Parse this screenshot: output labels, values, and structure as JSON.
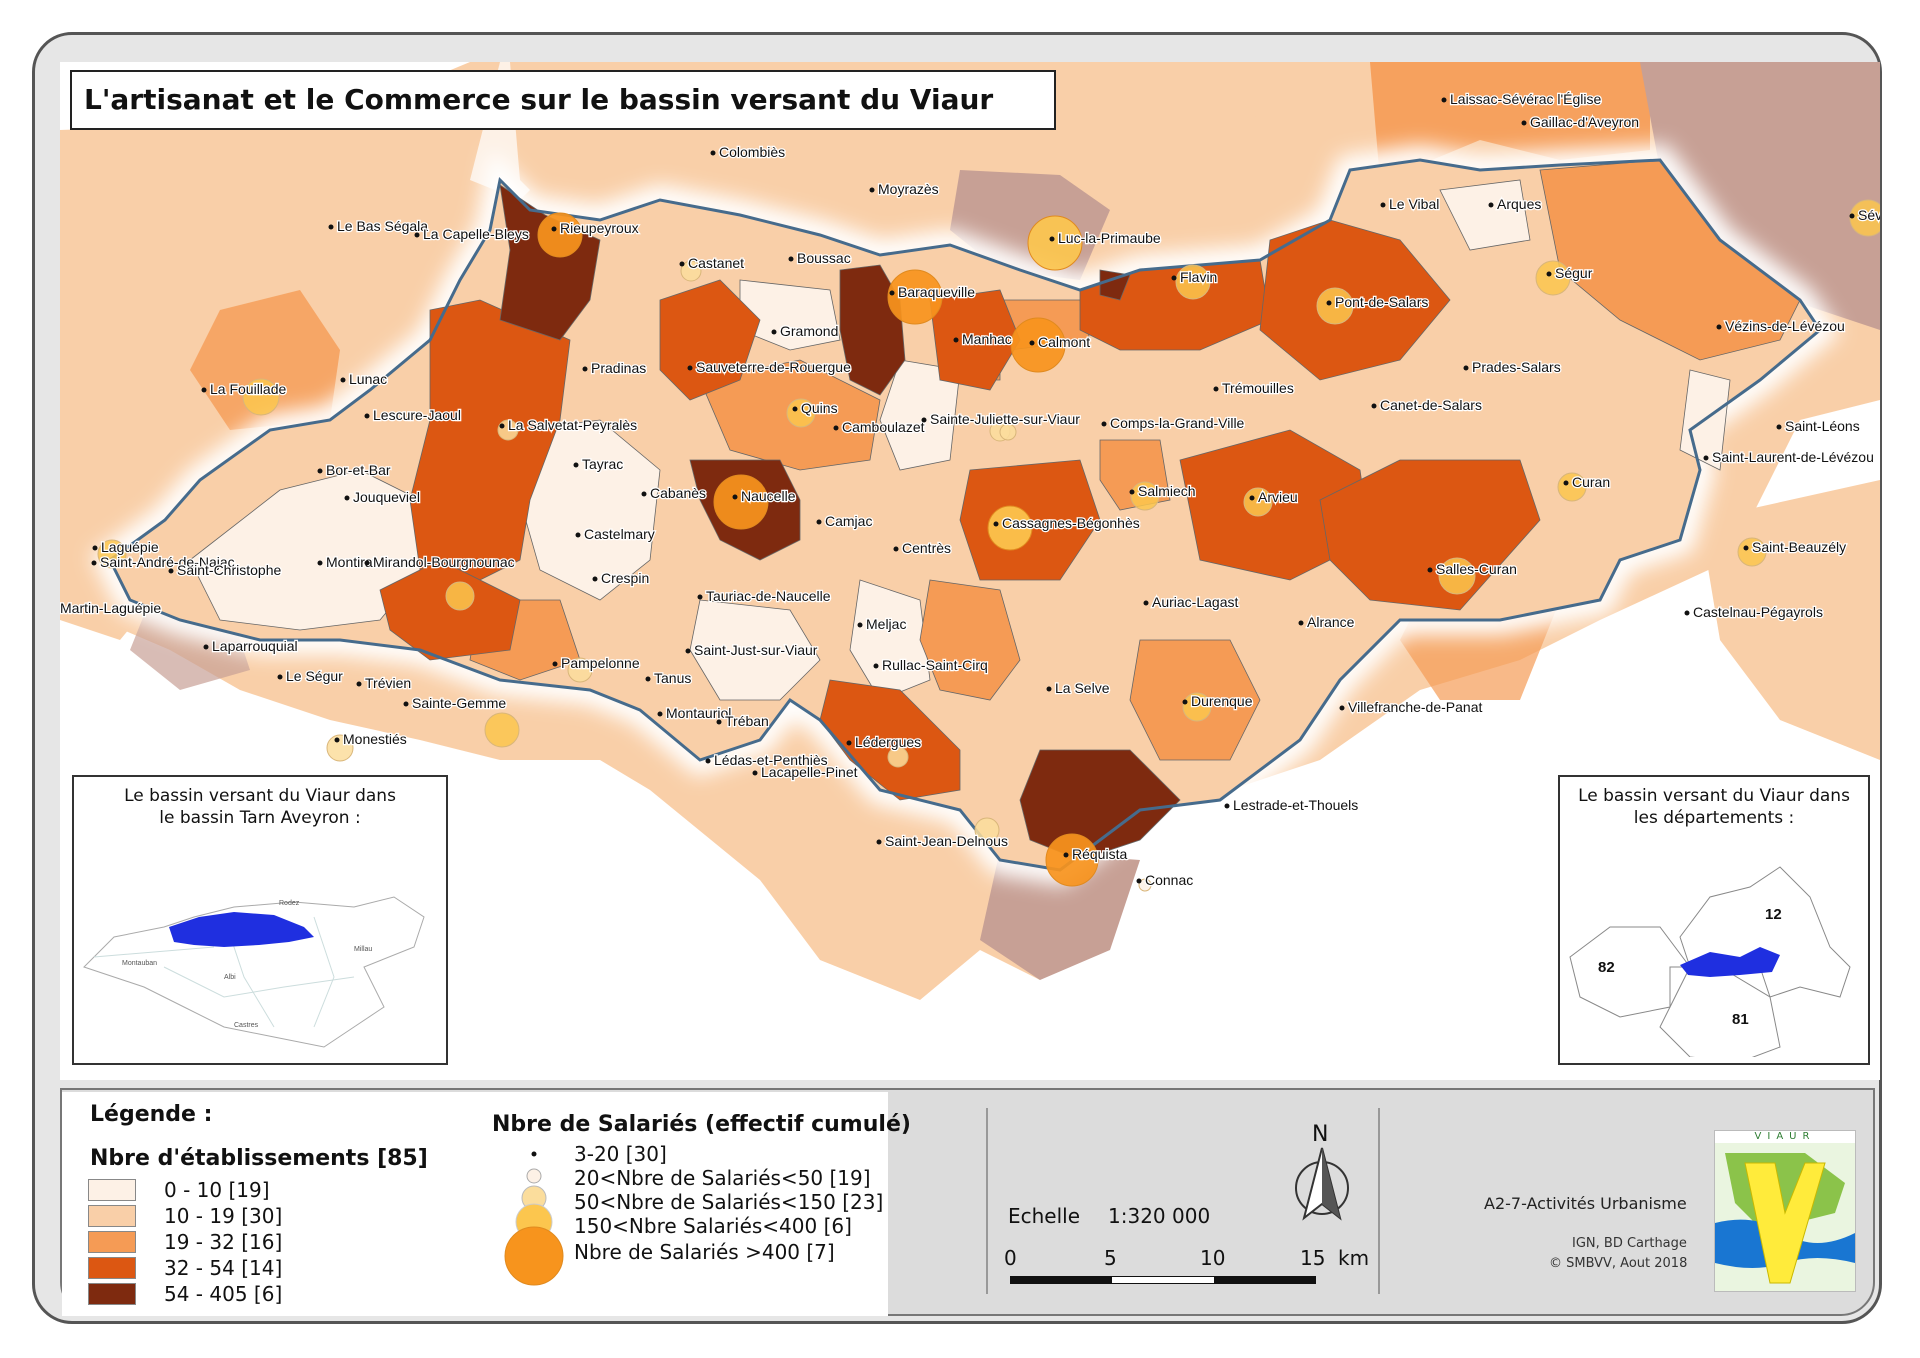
{
  "title": "L'artisanat et le Commerce sur le bassin versant du Viaur",
  "colors": {
    "class_1": "#fdf1e6",
    "class_2": "#f9cfa8",
    "class_3": "#f59b55",
    "class_4": "#dc5712",
    "class_5": "#7e2a0f",
    "outside": "#c7a095",
    "basin_outline": "#466b8c",
    "circle": "#f7941d"
  },
  "communes": [
    {
      "name": "Colombiès"
    },
    {
      "name": "Moyrazès"
    },
    {
      "name": "Laissac-Sévérac l'Église"
    },
    {
      "name": "Gaillac-d'Aveyron"
    },
    {
      "name": "Le Vibal"
    },
    {
      "name": "Arques"
    },
    {
      "name": "Sév"
    },
    {
      "name": "Le Bas Ségala"
    },
    {
      "name": "La Capelle-Bleys"
    },
    {
      "name": "Rieupeyroux"
    },
    {
      "name": "Castanet"
    },
    {
      "name": "Boussac"
    },
    {
      "name": "Luc-la-Primaube"
    },
    {
      "name": "Baraqueville"
    },
    {
      "name": "Flavin"
    },
    {
      "name": "Ségur"
    },
    {
      "name": "Pont-de-Salars"
    },
    {
      "name": "Gramond"
    },
    {
      "name": "Manhac"
    },
    {
      "name": "Calmont"
    },
    {
      "name": "Vézins-de-Lévézou"
    },
    {
      "name": "Pradinas"
    },
    {
      "name": "Sauveterre-de-Rouergue"
    },
    {
      "name": "Prades-Salars"
    },
    {
      "name": "La Fouillade"
    },
    {
      "name": "Lunac"
    },
    {
      "name": "Quins"
    },
    {
      "name": "Trémouilles"
    },
    {
      "name": "Canet-de-Salars"
    },
    {
      "name": "Lescure-Jaoul"
    },
    {
      "name": "La Salvetat-Peyralès"
    },
    {
      "name": "Camboulazet"
    },
    {
      "name": "Sainte-Juliette-sur-Viaur"
    },
    {
      "name": "Comps-la-Grand-Ville"
    },
    {
      "name": "Saint-Léons"
    },
    {
      "name": "Bor-et-Bar"
    },
    {
      "name": "Tayrac"
    },
    {
      "name": "Saint-Laurent-de-Lévézou"
    },
    {
      "name": "Jouqueviel"
    },
    {
      "name": "Cabanès"
    },
    {
      "name": "Naucelle"
    },
    {
      "name": "Salmiech"
    },
    {
      "name": "Arvieu"
    },
    {
      "name": "Curan"
    },
    {
      "name": "Camjac"
    },
    {
      "name": "Cassagnes-Bégonhès"
    },
    {
      "name": "Laguépie"
    },
    {
      "name": "Castelmary"
    },
    {
      "name": "Centrès"
    },
    {
      "name": "Saint-Beauzély"
    },
    {
      "name": "Saint-André-de-Najac"
    },
    {
      "name": "Montirat"
    },
    {
      "name": "Mirandol-Bourgnounac"
    },
    {
      "name": "Saint-Christophe"
    },
    {
      "name": "Crespin"
    },
    {
      "name": "Salles-Curan"
    },
    {
      "name": "Martin-Laguépie"
    },
    {
      "name": "Tauriac-de-Naucelle"
    },
    {
      "name": "Auriac-Lagast"
    },
    {
      "name": "Castelnau-Pégayrols"
    },
    {
      "name": "Meljac"
    },
    {
      "name": "Alrance"
    },
    {
      "name": "Laparrouquial"
    },
    {
      "name": "Saint-Just-sur-Viaur"
    },
    {
      "name": "Rullac-Saint-Cirq"
    },
    {
      "name": "Pampelonne"
    },
    {
      "name": "Le Ségur"
    },
    {
      "name": "Tanus"
    },
    {
      "name": "La Selve"
    },
    {
      "name": "Trévien"
    },
    {
      "name": "Durenque"
    },
    {
      "name": "Sainte-Gemme"
    },
    {
      "name": "Montauriol"
    },
    {
      "name": "Villefranche-de-Panat"
    },
    {
      "name": "Tréban"
    },
    {
      "name": "Monestiés"
    },
    {
      "name": "Lédergues"
    },
    {
      "name": "Lédas-et-Penthiès"
    },
    {
      "name": "Lacapelle-Pinet"
    },
    {
      "name": "Lestrade-et-Thouels"
    },
    {
      "name": "Saint-Jean-Delnous"
    },
    {
      "name": "Réquista"
    },
    {
      "name": "Connac"
    }
  ],
  "inset_left": {
    "title_line1": "Le bassin versant du Viaur dans",
    "title_line2": "le bassin Tarn Aveyron :",
    "labels": [
      "Rodez",
      "Millau",
      "Montauban",
      "Albi",
      "Castres"
    ]
  },
  "inset_right": {
    "title_line1": "Le bassin versant du Viaur dans",
    "title_line2": "les départements :",
    "departments": [
      "12",
      "82",
      "81"
    ]
  },
  "legend": {
    "heading": "Légende :",
    "classes_title": "Nbre d'établissements [85]",
    "classes": [
      {
        "label": "0 - 10  [19]",
        "color": "#fdf1e6"
      },
      {
        "label": "10 - 19  [30]",
        "color": "#f9cfa8"
      },
      {
        "label": "19 - 32  [16]",
        "color": "#f59b55"
      },
      {
        "label": "32 - 54  [14]",
        "color": "#dc5712"
      },
      {
        "label": "54 - 405  [6]",
        "color": "#7e2a0f"
      }
    ],
    "salaries_title": "Nbre de Salariés (effectif cumulé)",
    "salaries": [
      {
        "label": "3-20 [30]"
      },
      {
        "label": "20<Nbre de Salariés<50 [19]"
      },
      {
        "label": "50<Nbre de Salariés<150 [23]"
      },
      {
        "label": "150<Nbre Salariés<400 [6]"
      },
      {
        "label": "Nbre de Salariés >400 [7]"
      }
    ]
  },
  "scale": {
    "label": "Echelle",
    "ratio": "1:320 000",
    "ticks": [
      "0",
      "5",
      "10",
      "15"
    ],
    "unit": "km"
  },
  "north_label": "N",
  "credits": {
    "project": "A2-7-Activités Urbanisme",
    "source": "IGN, BD Carthage",
    "copyright": "© SMBVV, Aout 2018",
    "logo_text": "VIAUR"
  }
}
